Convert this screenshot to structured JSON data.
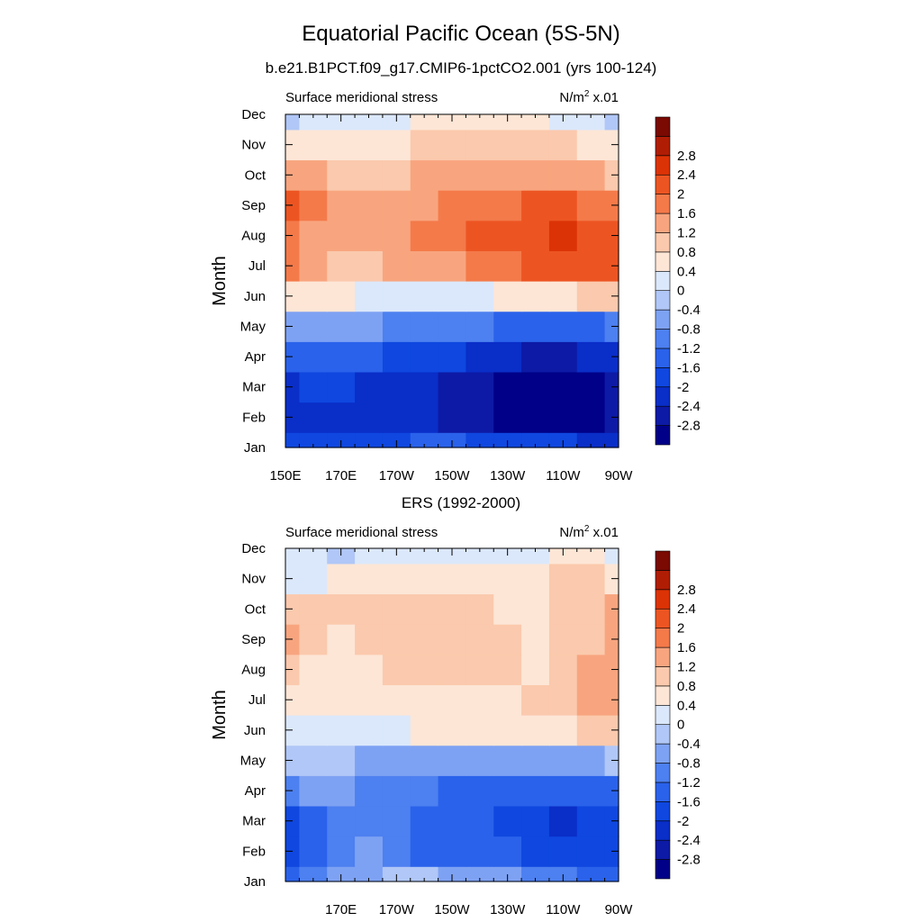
{
  "figure": {
    "title": "Equatorial Pacific Ocean (5S-5N)",
    "background": "#ffffff"
  },
  "panels": [
    {
      "id": "model",
      "header": "b.e21.B1PCT.f09_g17.CMIP6-1pctCO2.001 (yrs 100-124)",
      "left_label": "Surface meridional stress",
      "units": {
        "base": "N/m",
        "exponent": "2",
        "scale": "x.01"
      },
      "ylabel": "Month",
      "show_first_xtick": true
    },
    {
      "id": "obs",
      "header": "ERS (1992-2000)",
      "left_label": "Surface meridional stress",
      "units": {
        "base": "N/m",
        "exponent": "2",
        "scale": "x.01"
      },
      "ylabel": "Month",
      "show_first_xtick": false
    }
  ],
  "colorbar": {
    "levels": [
      -3.2,
      -2.8,
      -2.4,
      -2,
      -1.6,
      -1.2,
      -0.8,
      -0.4,
      0,
      0.4,
      0.8,
      1.2,
      1.6,
      2,
      2.4,
      2.8,
      3.2
    ],
    "colors": [
      "#000088",
      "#0d1aa5",
      "#0a2ec8",
      "#0f47e0",
      "#2a62eb",
      "#4d80f0",
      "#7ea2f3",
      "#b0c7f7",
      "#dbe8fb",
      "#fde6d6",
      "#fbc9ad",
      "#f8a57f",
      "#f47a4a",
      "#ec5522",
      "#dc3306",
      "#b01d05",
      "#7a0a02"
    ],
    "labels": [
      "-2.8",
      "-2.4",
      "-2",
      "-1.6",
      "-1.2",
      "-0.8",
      "-0.4",
      "0",
      "0.4",
      "0.8",
      "1.2",
      "1.6",
      "2",
      "2.4",
      "2.8"
    ]
  },
  "chart_data": [
    {
      "type": "heatmap",
      "title": "b.e21.B1PCT.f09_g17.CMIP6-1pctCO2.001 (yrs 100-124)",
      "variable": "Surface meridional stress",
      "units": "N/m2 x.01",
      "xlabel": "",
      "ylabel": "Month",
      "x_tick_labels": [
        "150E",
        "170E",
        "170W",
        "150W",
        "130W",
        "110W",
        "90W"
      ],
      "y_tick_labels": [
        "Jan",
        "Feb",
        "Mar",
        "Apr",
        "May",
        "Jun",
        "Jul",
        "Aug",
        "Sep",
        "Oct",
        "Nov",
        "Dec"
      ],
      "xlim": [
        150,
        270
      ],
      "x": [
        150,
        160,
        170,
        180,
        190,
        200,
        210,
        220,
        230,
        240,
        250,
        260,
        270
      ],
      "y": [
        "Jan",
        "Feb",
        "Mar",
        "Apr",
        "May",
        "Jun",
        "Jul",
        "Aug",
        "Sep",
        "Oct",
        "Nov",
        "Dec"
      ],
      "z": [
        [
          -2.0,
          -2.0,
          -1.9,
          -1.8,
          -1.7,
          -1.6,
          -1.6,
          -1.7,
          -1.8,
          -1.9,
          -2.0,
          -2.1,
          -2.2
        ],
        [
          -2.4,
          -2.3,
          -2.3,
          -2.3,
          -2.3,
          -2.4,
          -2.5,
          -2.7,
          -2.9,
          -3.0,
          -3.0,
          -3.0,
          -2.8
        ],
        [
          -2.2,
          -2.0,
          -2.0,
          -2.1,
          -2.2,
          -2.3,
          -2.6,
          -2.8,
          -3.0,
          -3.0,
          -3.0,
          -2.9,
          -2.8
        ],
        [
          -1.6,
          -1.5,
          -1.5,
          -1.6,
          -1.7,
          -1.8,
          -2.0,
          -2.2,
          -2.4,
          -2.5,
          -2.5,
          -2.4,
          -2.2
        ],
        [
          -0.6,
          -0.6,
          -0.7,
          -0.8,
          -0.9,
          -1.0,
          -1.1,
          -1.2,
          -1.3,
          -1.4,
          -1.4,
          -1.3,
          -1.2
        ],
        [
          0.6,
          0.5,
          0.4,
          0.3,
          0.3,
          0.3,
          0.3,
          0.3,
          0.4,
          0.5,
          0.7,
          0.9,
          1.0
        ],
        [
          1.6,
          1.3,
          1.1,
          1.1,
          1.2,
          1.4,
          1.5,
          1.7,
          1.9,
          2.1,
          2.2,
          2.2,
          2.0
        ],
        [
          1.9,
          1.5,
          1.2,
          1.2,
          1.3,
          1.6,
          1.9,
          2.0,
          2.2,
          2.3,
          2.4,
          2.3,
          2.1
        ],
        [
          2.0,
          1.6,
          1.3,
          1.3,
          1.3,
          1.5,
          1.7,
          1.8,
          1.9,
          2.0,
          2.0,
          1.9,
          1.7
        ],
        [
          1.3,
          1.2,
          1.1,
          1.1,
          1.1,
          1.2,
          1.2,
          1.2,
          1.3,
          1.3,
          1.3,
          1.2,
          1.1
        ],
        [
          0.5,
          0.6,
          0.6,
          0.7,
          0.7,
          0.8,
          0.8,
          0.9,
          0.9,
          0.9,
          0.8,
          0.7,
          0.6
        ],
        [
          -0.1,
          0.2,
          0.2,
          0.3,
          0.3,
          0.4,
          0.4,
          0.5,
          0.5,
          0.4,
          0.2,
          0.1,
          -0.1
        ]
      ],
      "zlim": [
        -3.2,
        3.2
      ]
    },
    {
      "type": "heatmap",
      "title": "ERS (1992-2000)",
      "variable": "Surface meridional stress",
      "units": "N/m2 x.01",
      "xlabel": "",
      "ylabel": "Month",
      "x_tick_labels": [
        "170E",
        "170W",
        "150W",
        "130W",
        "110W",
        "90W"
      ],
      "y_tick_labels": [
        "Jan",
        "Feb",
        "Mar",
        "Apr",
        "May",
        "Jun",
        "Jul",
        "Aug",
        "Sep",
        "Oct",
        "Nov",
        "Dec"
      ],
      "xlim": [
        150,
        270
      ],
      "x": [
        150,
        160,
        170,
        180,
        190,
        200,
        210,
        220,
        230,
        240,
        250,
        260,
        270
      ],
      "y": [
        "Jan",
        "Feb",
        "Mar",
        "Apr",
        "May",
        "Jun",
        "Jul",
        "Aug",
        "Sep",
        "Oct",
        "Nov",
        "Dec"
      ],
      "z": [
        [
          -1.4,
          -1.0,
          -0.8,
          -0.6,
          -0.4,
          -0.4,
          -0.5,
          -0.6,
          -0.8,
          -1.0,
          -1.2,
          -1.4,
          -1.6
        ],
        [
          -1.8,
          -1.4,
          -1.0,
          -0.8,
          -1.1,
          -1.3,
          -1.5,
          -1.6,
          -1.6,
          -1.8,
          -2.0,
          -2.0,
          -2.0
        ],
        [
          -1.8,
          -1.4,
          -1.0,
          -1.0,
          -1.2,
          -1.4,
          -1.6,
          -1.6,
          -1.8,
          -2.0,
          -2.1,
          -2.0,
          -2.0
        ],
        [
          -1.0,
          -0.8,
          -0.8,
          -0.9,
          -1.0,
          -1.1,
          -1.4,
          -1.5,
          -1.5,
          -1.5,
          -1.6,
          -1.6,
          -1.5
        ],
        [
          -0.3,
          -0.3,
          -0.4,
          -0.5,
          -0.5,
          -0.6,
          -0.7,
          -0.8,
          -0.8,
          -0.8,
          -0.7,
          -0.6,
          -0.4
        ],
        [
          0.3,
          0.3,
          0.3,
          0.3,
          0.3,
          0.4,
          0.4,
          0.4,
          0.4,
          0.5,
          0.7,
          0.9,
          0.8
        ],
        [
          0.6,
          0.6,
          0.6,
          0.5,
          0.5,
          0.6,
          0.6,
          0.6,
          0.6,
          0.8,
          1.0,
          1.3,
          1.2
        ],
        [
          0.8,
          0.7,
          0.6,
          0.7,
          0.8,
          0.8,
          0.8,
          0.8,
          0.8,
          0.7,
          0.9,
          1.2,
          1.3
        ],
        [
          1.3,
          0.9,
          0.7,
          0.8,
          0.8,
          0.9,
          0.8,
          0.8,
          0.8,
          0.7,
          0.9,
          1.1,
          1.2
        ],
        [
          0.9,
          0.8,
          0.8,
          0.9,
          0.8,
          0.8,
          0.8,
          0.8,
          0.7,
          0.6,
          0.8,
          1.0,
          1.2
        ],
        [
          0.3,
          0.3,
          0.4,
          0.5,
          0.5,
          0.5,
          0.4,
          0.4,
          0.4,
          0.6,
          0.8,
          0.8,
          0.7
        ],
        [
          0.1,
          0.0,
          -0.1,
          0.1,
          0.2,
          0.3,
          0.3,
          0.3,
          0.3,
          0.3,
          0.5,
          0.5,
          0.3
        ]
      ],
      "zlim": [
        -3.2,
        3.2
      ]
    }
  ]
}
